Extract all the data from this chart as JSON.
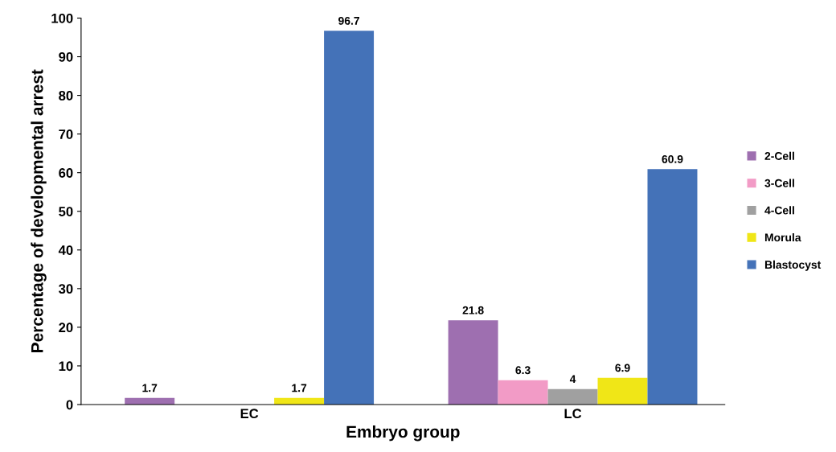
{
  "chart_data": {
    "type": "bar",
    "xlabel": "Embryo group",
    "ylabel": "Percentage of developmental arrest",
    "categories": [
      "EC",
      "LC"
    ],
    "series": [
      {
        "name": "2-Cell",
        "color": "#9e6fb0",
        "values": [
          1.7,
          21.8
        ]
      },
      {
        "name": "3-Cell",
        "color": "#f29bc6",
        "values": [
          null,
          6.3
        ]
      },
      {
        "name": "4-Cell",
        "color": "#a0a0a0",
        "values": [
          null,
          4
        ]
      },
      {
        "name": "Morula",
        "color": "#f0e617",
        "values": [
          1.7,
          6.9
        ]
      },
      {
        "name": "Blastocyst",
        "color": "#4472b8",
        "values": [
          96.7,
          60.9
        ]
      }
    ],
    "ylim": [
      0,
      100
    ],
    "yticks": [
      0,
      10,
      20,
      30,
      40,
      50,
      60,
      70,
      80,
      90,
      100
    ],
    "grid": false,
    "legend": "right",
    "data_labels": true
  }
}
